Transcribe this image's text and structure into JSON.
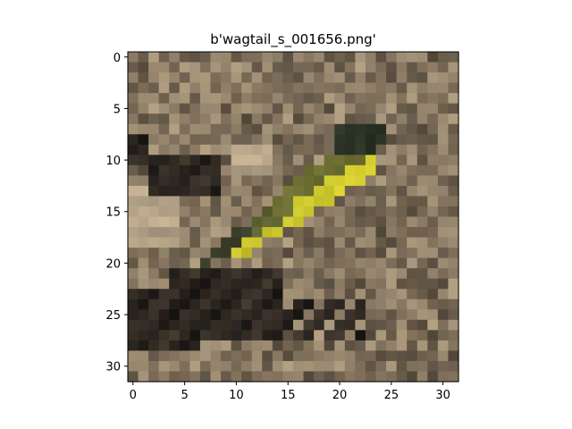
{
  "figure": {
    "title": "b'wagtail_s_001656.png'"
  },
  "image": {
    "description_free_palette": {
      "background_colors": [
        "#8a7a64",
        "#7d6d58",
        "#9a8a72",
        "#6e604e",
        "#a69478",
        "#5f5445"
      ],
      "dark_colors": [
        "#2a2520",
        "#1f1c18",
        "#332c25",
        "#3b3329"
      ],
      "light_colors": [
        "#b8a689",
        "#c2ae8f",
        "#a89a80"
      ],
      "bird_colors": {
        "head": "#2b3326",
        "back": "#5c6232",
        "olive": "#6d6f34",
        "yellow": "#c9c52c",
        "yellow_bright": "#d8d030",
        "tail": "#3a3d2a"
      }
    }
  },
  "chart_data": {
    "type": "heatmap",
    "title": "b'wagtail_s_001656.png'",
    "xlabel": "",
    "ylabel": "",
    "xlim": [
      -0.5,
      31.5
    ],
    "ylim": [
      31.5,
      -0.5
    ],
    "x_ticks": [
      0,
      5,
      10,
      15,
      20,
      25,
      30
    ],
    "y_ticks": [
      0,
      5,
      10,
      15,
      20,
      25,
      30
    ],
    "x_tick_labels": [
      "0",
      "5",
      "10",
      "15",
      "20",
      "25",
      "30"
    ],
    "y_tick_labels": [
      "0",
      "5",
      "10",
      "15",
      "20",
      "25",
      "30"
    ],
    "grid": false
  }
}
